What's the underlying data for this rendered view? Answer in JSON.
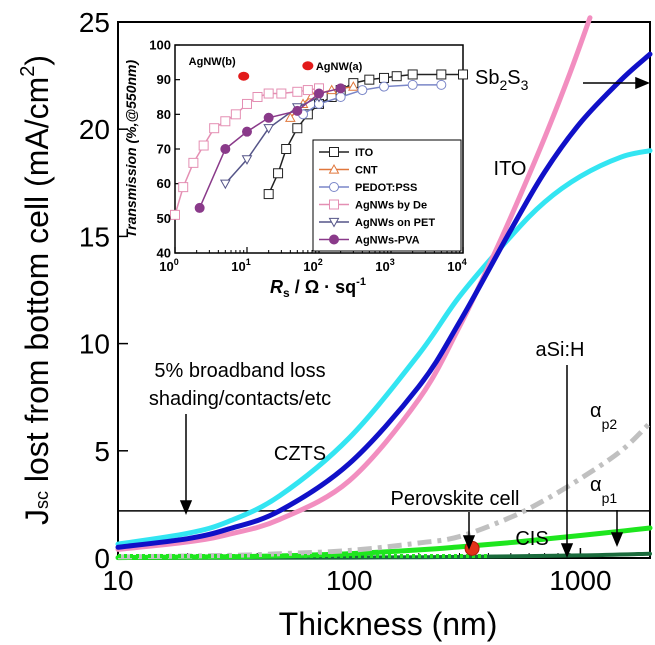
{
  "chart_data": [
    {
      "type": "line",
      "xlabel": "Thickness (nm)",
      "ylabel_main": "J",
      "ylabel_sub": "sc",
      "ylabel_rest": " lost from bottom cell (mA/cm",
      "ylabel_sup": "2",
      "ylabel_end": ")",
      "x_scale": "log",
      "xlim": [
        10,
        2000
      ],
      "ylim": [
        0,
        25
      ],
      "x_ticks": [
        10,
        100,
        1000
      ],
      "x_tick_labels": [
        "10",
        "100",
        "1000"
      ],
      "y_ticks": [
        0,
        5,
        10,
        15,
        20,
        25
      ],
      "y_tick_labels": [
        "0",
        "5",
        "10",
        "15",
        "20",
        "25"
      ],
      "grid": false,
      "legend": "none",
      "series": [
        {
          "name": "ITO",
          "color": "#33e5f2",
          "style": "solid",
          "x": [
            10,
            20,
            30,
            50,
            100,
            200,
            300,
            500,
            700,
            1000,
            1500,
            2000
          ],
          "y": [
            0.65,
            1.15,
            1.7,
            2.9,
            5.6,
            9.5,
            12.2,
            15.0,
            16.6,
            17.8,
            18.7,
            19.0
          ]
        },
        {
          "name": "Sb2S3",
          "color": "#1010c8",
          "style": "solid",
          "x": [
            10,
            20,
            30,
            50,
            100,
            200,
            300,
            500,
            700,
            1000,
            1500,
            2000
          ],
          "y": [
            0.5,
            0.9,
            1.35,
            2.2,
            4.4,
            8.0,
            11.0,
            15.3,
            18.0,
            20.3,
            22.3,
            23.5
          ]
        },
        {
          "name": "CZTS",
          "color": "#f28ec0",
          "style": "solid",
          "x": [
            10,
            20,
            30,
            50,
            100,
            200,
            300,
            400,
            500,
            700,
            900,
            1100
          ],
          "y": [
            0.4,
            0.75,
            1.1,
            1.8,
            3.6,
            7.4,
            10.8,
            13.6,
            15.9,
            19.6,
            22.6,
            25.2
          ]
        },
        {
          "name": "aSi:H",
          "color": "#c0c0c0",
          "style": "dash-dot",
          "x": [
            10,
            30,
            50,
            100,
            200,
            300,
            500,
            700,
            1000,
            1500,
            2000
          ],
          "y": [
            0.05,
            0.12,
            0.2,
            0.35,
            0.7,
            1.0,
            1.9,
            2.7,
            3.7,
            5.0,
            6.3
          ]
        },
        {
          "name": "CIS",
          "color": "#1ee61e",
          "style": "solid",
          "x": [
            10,
            30,
            50,
            100,
            200,
            300,
            500,
            700,
            1000,
            1500,
            2000
          ],
          "y": [
            0.02,
            0.06,
            0.1,
            0.2,
            0.38,
            0.52,
            0.72,
            0.88,
            1.05,
            1.25,
            1.4
          ]
        },
        {
          "name": "Perovskite cell",
          "color": "#1a6b3c",
          "style": "solid",
          "x": [
            10,
            100,
            300,
            1000,
            2000
          ],
          "y": [
            0.0,
            0.02,
            0.05,
            0.12,
            0.2
          ]
        },
        {
          "name": "5% broadband loss",
          "color": "#000000",
          "style": "solid",
          "x": [
            10,
            2000
          ],
          "y": [
            2.2,
            2.2
          ]
        }
      ],
      "points": [
        {
          "name": "Perovskite cell",
          "x": 340,
          "y": 0.45,
          "color": "#e2321a"
        }
      ],
      "annotations": [
        {
          "text": "5% broadband loss",
          "x": 20,
          "y": 9.15
        },
        {
          "text": "shading/contacts/etc",
          "x": 20,
          "y": 7.55
        },
        {
          "text": "CZTS",
          "x": 30,
          "y": 4.5
        },
        {
          "text": "ITO",
          "x": 1050,
          "y": 16.7
        },
        {
          "text": "aSi:H",
          "x": 800,
          "y": 9.2
        },
        {
          "text": "Perovskite cell",
          "x": 320,
          "y": 2.75
        },
        {
          "text": "CIS",
          "x": 700,
          "y": 1.1
        }
      ],
      "label_sb2s3": {
        "base1": "Sb",
        "sub1": "2",
        "base2": "S",
        "sub2": "3"
      },
      "label_alpha_p2": {
        "base": "α",
        "sub": "p2"
      },
      "label_alpha_p1": {
        "base": "α",
        "sub": "p1"
      }
    },
    {
      "type": "line",
      "ylabel": "Transmission (%,@550nm)",
      "xlabel_main": "R",
      "xlabel_sub": "s",
      "xlabel_rest": " / Ω · sq",
      "xlabel_sup": "-1",
      "x_scale": "log",
      "xlim": [
        1,
        10000
      ],
      "ylim": [
        40,
        100
      ],
      "x_ticks": [
        1,
        10,
        100,
        1000,
        10000
      ],
      "x_tick_base": "10",
      "x_tick_exps": [
        "0",
        "1",
        "2",
        "3",
        "4"
      ],
      "y_ticks": [
        40,
        50,
        60,
        70,
        80,
        90,
        100
      ],
      "y_tick_labels": [
        "40",
        "50",
        "60",
        "70",
        "80",
        "90",
        "100"
      ],
      "grid": false,
      "legend": "lower-right",
      "series": [
        {
          "name": "ITO",
          "color": "#222222",
          "marker": "square-open",
          "x": [
            20,
            27,
            35,
            50,
            70,
            100,
            150,
            200,
            300,
            500,
            800,
            1200,
            2000,
            5000,
            10000
          ],
          "y": [
            57,
            63,
            70,
            76,
            80,
            83,
            85,
            87,
            89,
            90,
            90.5,
            91,
            91.5,
            91.5,
            91.5
          ]
        },
        {
          "name": "CNT",
          "color": "#e0773c",
          "marker": "triangle-open",
          "x": [
            40,
            60,
            80,
            150,
            300
          ],
          "y": [
            79,
            83,
            85.5,
            87,
            88
          ]
        },
        {
          "name": "PEDOT:PSS",
          "color": "#7a86c8",
          "marker": "circle-open",
          "x": [
            60,
            100,
            200,
            400,
            800,
            2000,
            5000
          ],
          "y": [
            80,
            83,
            85,
            87,
            88,
            88.5,
            88.5
          ]
        },
        {
          "name": "AgNWs by De",
          "color": "#e48fb3",
          "marker": "square-open",
          "x": [
            1,
            1.3,
            1.8,
            2.5,
            3.5,
            5,
            7,
            10,
            14,
            20,
            30,
            50,
            70,
            100
          ],
          "y": [
            51,
            59,
            66,
            71,
            76,
            78,
            80,
            83,
            85,
            86,
            86,
            86.5,
            87,
            87.5
          ]
        },
        {
          "name": "AgNWs on PET",
          "color": "#555588",
          "marker": "triangle-down-open",
          "x": [
            5,
            10,
            20,
            50,
            100
          ],
          "y": [
            60,
            67,
            76,
            82,
            85
          ]
        },
        {
          "name": "AgNWs-PVA",
          "color": "#8a3a8a",
          "marker": "circle-filled",
          "x": [
            2.2,
            5,
            10,
            20,
            50,
            100,
            200
          ],
          "y": [
            53,
            70,
            75,
            79,
            81,
            86,
            87.5
          ]
        }
      ],
      "points": [
        {
          "label": "AgNW(b)",
          "x": 9,
          "y": 91,
          "color": "#e21a1a"
        },
        {
          "label": "AgNW(a)",
          "x": 70,
          "y": 94,
          "color": "#e21a1a"
        }
      ]
    }
  ]
}
